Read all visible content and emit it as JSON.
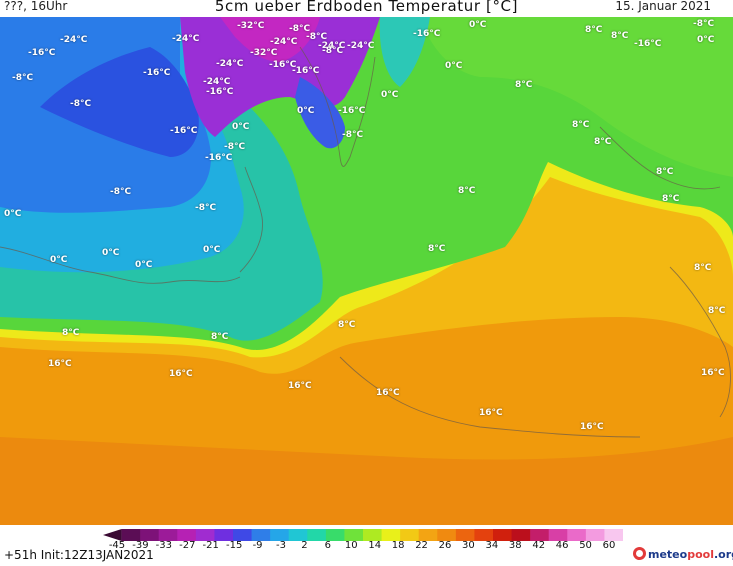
{
  "header": {
    "left": "???, 16Uhr",
    "title": "5cm ueber Erdboden Temperatur [°C]",
    "date": "15. Januar 2021"
  },
  "map": {
    "labels": [
      {
        "t": "-24°C"
      },
      {
        "t": "-24°C"
      },
      {
        "t": "-32°C"
      },
      {
        "t": "-8°C"
      },
      {
        "t": "-24°C"
      },
      {
        "t": "-8°C"
      },
      {
        "t": "-24°C"
      },
      {
        "t": "-24°C"
      },
      {
        "t": "-16°C"
      },
      {
        "t": "-8°C"
      },
      {
        "t": "0°C"
      },
      {
        "t": "-16°C"
      },
      {
        "t": "-32°C"
      },
      {
        "t": "-24°C"
      },
      {
        "t": "-16°C"
      },
      {
        "t": "8°C"
      },
      {
        "t": "8°C"
      },
      {
        "t": "-16°C"
      },
      {
        "t": "0°C"
      },
      {
        "t": "-8°C"
      },
      {
        "t": "-24°C"
      },
      {
        "t": "-16°C"
      },
      {
        "t": "-16°C"
      },
      {
        "t": "-16°C"
      },
      {
        "t": "0°C"
      },
      {
        "t": "0°C"
      },
      {
        "t": "-8°C"
      },
      {
        "t": "-8°C"
      },
      {
        "t": "0°C"
      },
      {
        "t": "-16°C"
      },
      {
        "t": "-16°C"
      },
      {
        "t": "0°C"
      },
      {
        "t": "-8°C"
      },
      {
        "t": "8°C"
      },
      {
        "t": "8°C"
      },
      {
        "t": "-16°C"
      },
      {
        "t": "-8°C"
      },
      {
        "t": "8°C"
      },
      {
        "t": "8°C"
      },
      {
        "t": "-8°C"
      },
      {
        "t": "8°C"
      },
      {
        "t": "8°C"
      },
      {
        "t": "0°C"
      },
      {
        "t": "-8°C"
      },
      {
        "t": "0°C"
      },
      {
        "t": "0°C"
      },
      {
        "t": "0°C"
      },
      {
        "t": "0°C"
      },
      {
        "t": "8°C"
      },
      {
        "t": "8°C"
      },
      {
        "t": "8°C"
      },
      {
        "t": "8°C"
      },
      {
        "t": "8°C"
      },
      {
        "t": "16°C"
      },
      {
        "t": "16°C"
      },
      {
        "t": "16°C"
      },
      {
        "t": "16°C"
      },
      {
        "t": "16°C"
      },
      {
        "t": "16°C"
      },
      {
        "t": "16°C"
      }
    ]
  },
  "colorbar": {
    "ticks": [
      "-45",
      "-39",
      "-33",
      "-27",
      "-21",
      "-15",
      "-9",
      "-3",
      "2",
      "6",
      "10",
      "14",
      "18",
      "22",
      "26",
      "30",
      "34",
      "38",
      "42",
      "46",
      "50",
      "60"
    ],
    "colors": [
      "#3a0a33",
      "#5b0d55",
      "#7d1278",
      "#9c1b99",
      "#b621b4",
      "#a02cd0",
      "#6f2fe0",
      "#3f49e6",
      "#2f7ee8",
      "#25a6e8",
      "#20c6d4",
      "#22d7a8",
      "#38dc6a",
      "#6fe23a",
      "#aeea22",
      "#e9f01a",
      "#f2c915",
      "#f3a413",
      "#f08a10",
      "#ec650f",
      "#e4410e",
      "#d0200d",
      "#bb0f1c",
      "#c31e6a",
      "#d83fa6",
      "#ea6ac9",
      "#f39be0",
      "#f8c7ef"
    ]
  },
  "footer": {
    "init": "+51h Init:12Z13JAN2021",
    "brand": "meteo",
    "brand2": "pool",
    "brand3": ".org"
  },
  "colors": {
    "orange": "#f09a0c",
    "yellow": "#f2e60f",
    "green": "#55d63a",
    "teal": "#27c0b2",
    "blue": "#2a72e6",
    "purple": "#9b2fd3"
  }
}
